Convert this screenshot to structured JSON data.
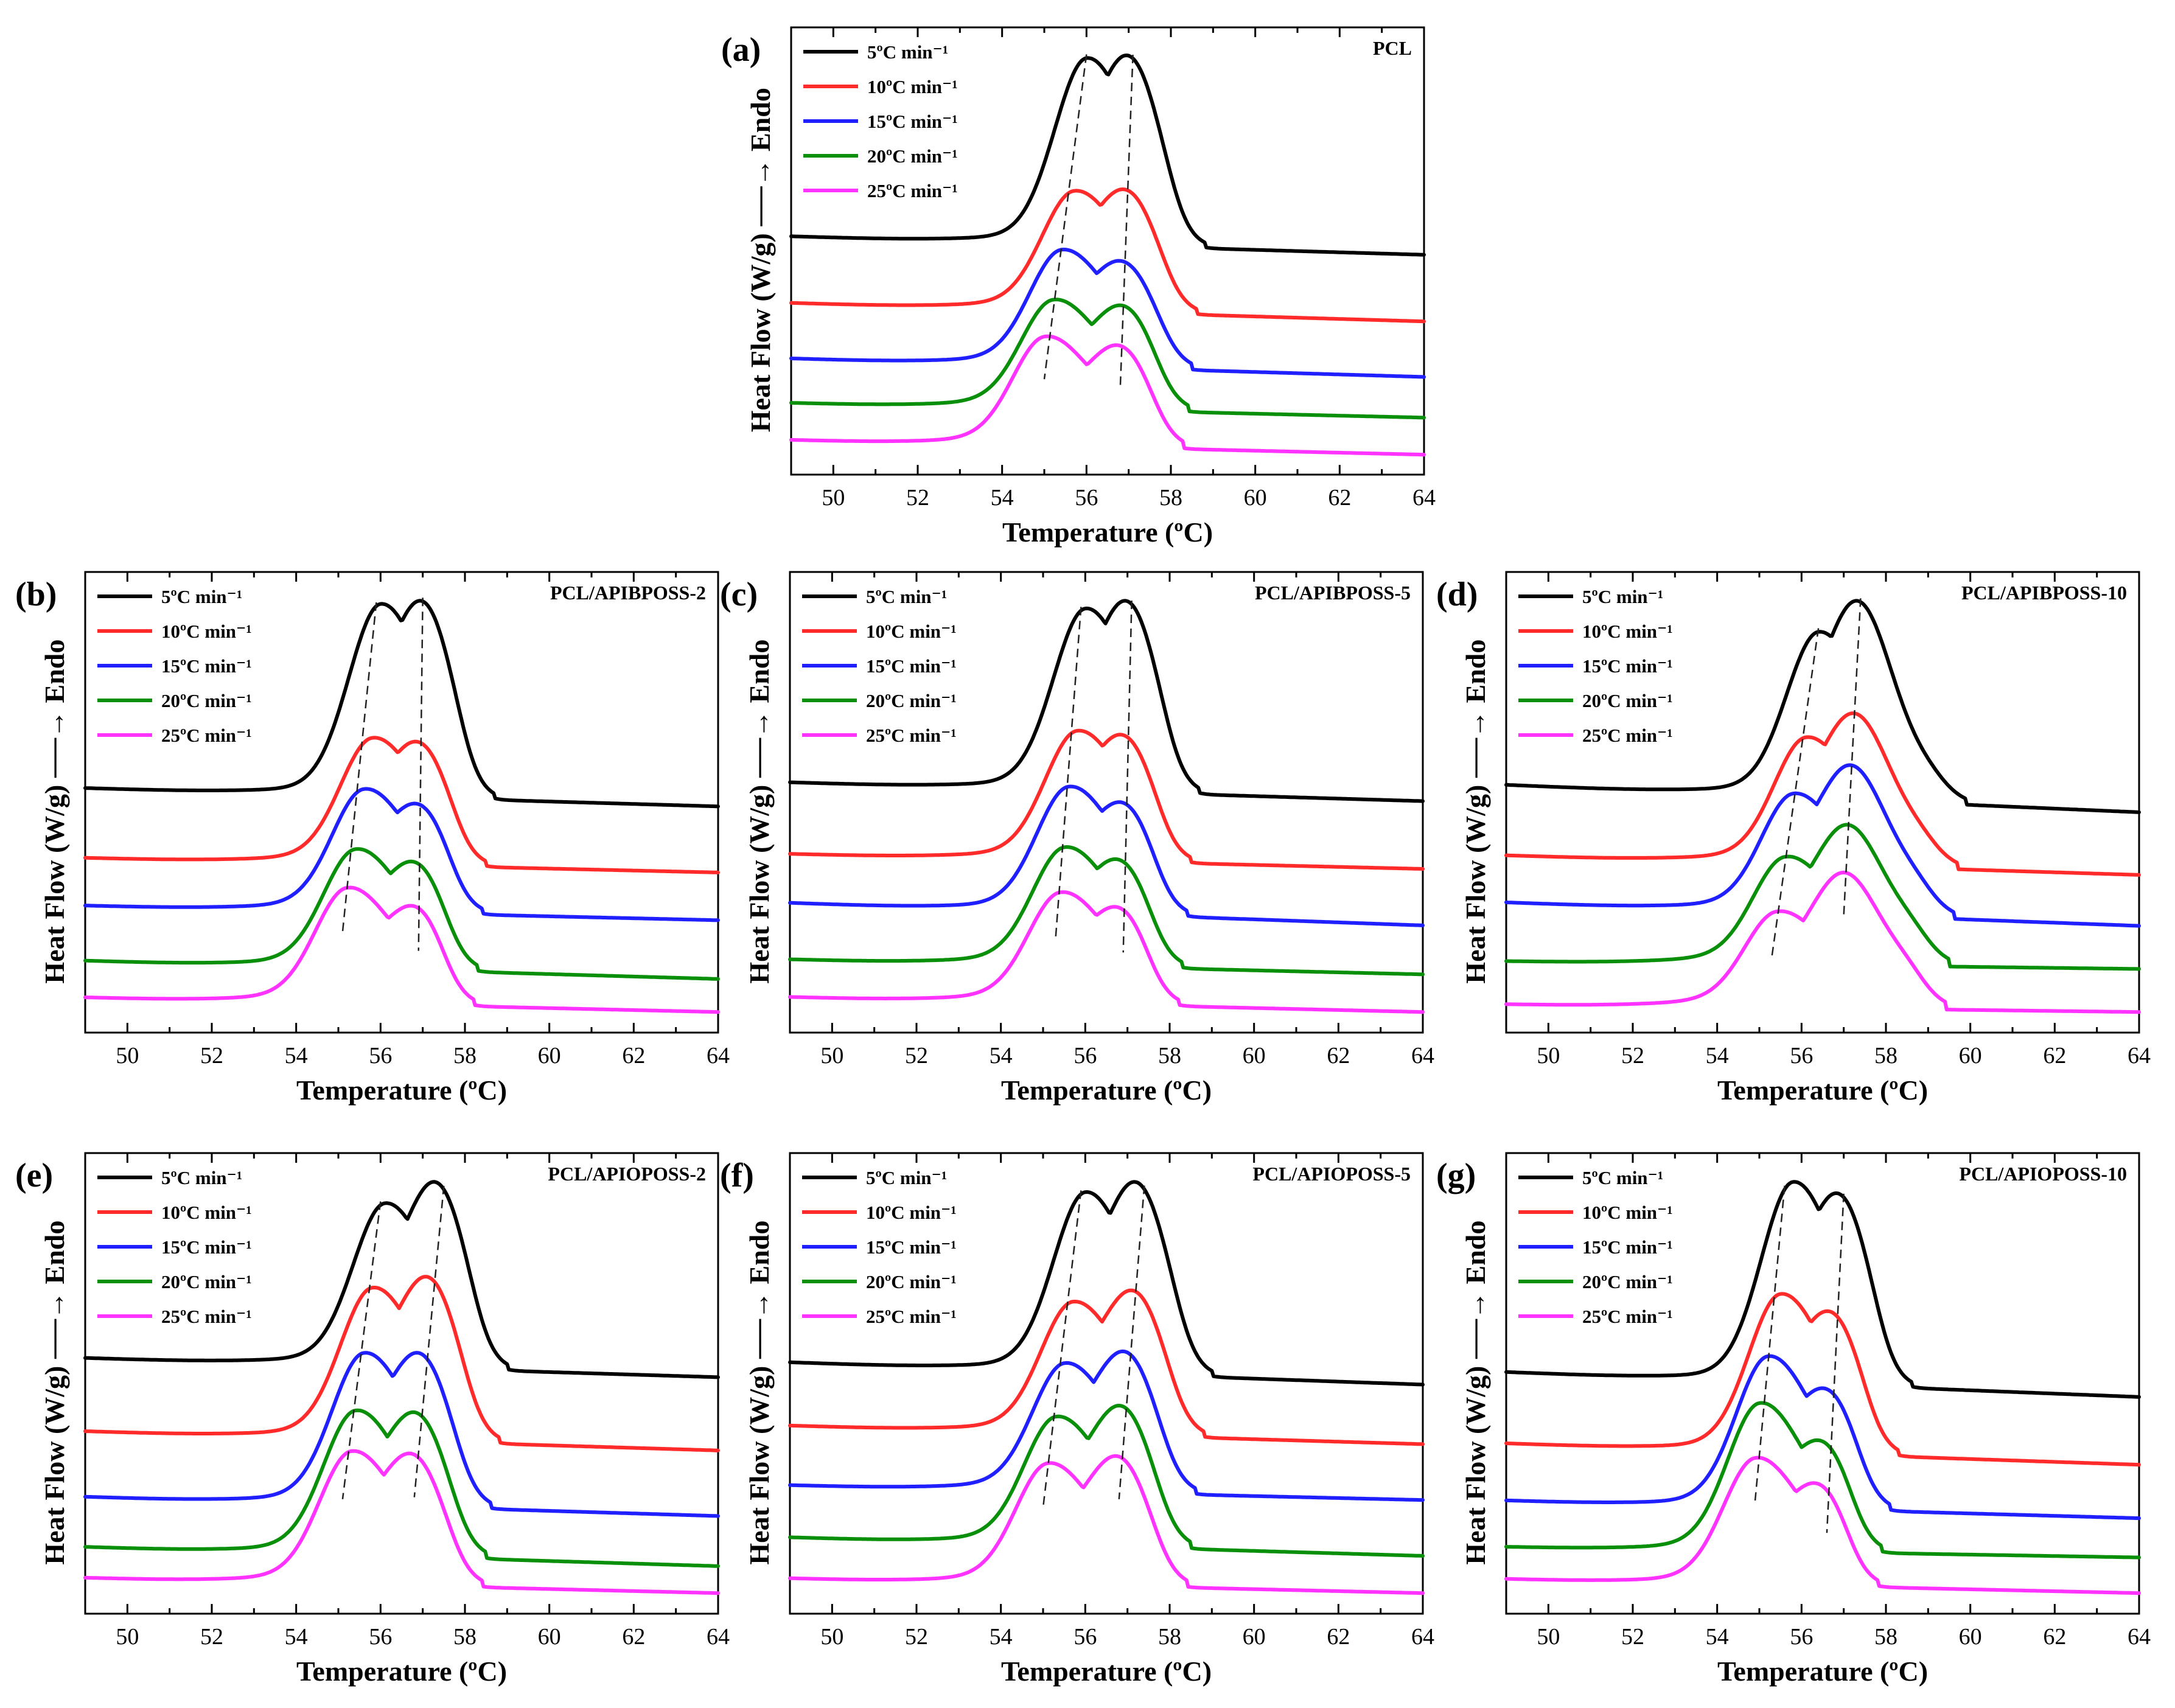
{
  "colors": {
    "5": "#000000",
    "10": "#ff2a2a",
    "15": "#1f1fff",
    "20": "#0a8f0a",
    "25": "#ff33ff",
    "dashed": "#333333"
  },
  "chart_data": [
    {
      "type": "line",
      "panel_label": "(a)",
      "sample": "PCL",
      "title": "PCL",
      "xlabel": "Temperature (ºC)",
      "ylabel": "Heat Flow (W/g) ──→ Endo",
      "xlim": [
        49,
        64
      ],
      "xticks": [
        50,
        52,
        54,
        56,
        58,
        60,
        62,
        64
      ],
      "y_units": "arbitrary (normalized, vertically offset)",
      "legend": [
        "5ºC min⁻¹",
        "10ºC min⁻¹",
        "15ºC min⁻¹",
        "20ºC min⁻¹",
        "25ºC min⁻¹"
      ],
      "series": [
        {
          "name": "5ºC min-1",
          "color_key": "5",
          "baseline_left": 55,
          "baseline_right": 50,
          "peak1_T": 56.0,
          "peak1_h": 46,
          "peak2_T": 57.1,
          "peak2_h": 36,
          "end_T": 58.8
        },
        {
          "name": "10ºC min-1",
          "color_key": "10",
          "baseline_left": 37,
          "baseline_right": 32,
          "peak1_T": 55.7,
          "peak1_h": 28,
          "peak2_T": 57.0,
          "peak2_h": 22,
          "end_T": 58.6
        },
        {
          "name": "15ºC min-1",
          "color_key": "15",
          "baseline_left": 22,
          "baseline_right": 17,
          "peak1_T": 55.4,
          "peak1_h": 27,
          "peak2_T": 56.9,
          "peak2_h": 18,
          "end_T": 58.5
        },
        {
          "name": "20ºC min-1",
          "color_key": "20",
          "baseline_left": 10,
          "baseline_right": 6,
          "peak1_T": 55.2,
          "peak1_h": 25,
          "peak2_T": 56.9,
          "peak2_h": 18,
          "end_T": 58.4
        },
        {
          "name": "25ºC min-1",
          "color_key": "25",
          "baseline_left": 0,
          "baseline_right": -4,
          "peak1_T": 55.0,
          "peak1_h": 25,
          "peak2_T": 56.8,
          "peak2_h": 17,
          "end_T": 58.3
        }
      ],
      "peak_trend_lines": [
        [
          56.0,
          55.0
        ],
        [
          57.1,
          56.8
        ]
      ]
    },
    {
      "type": "line",
      "panel_label": "(b)",
      "sample": "PCL/APIBPOSS-2",
      "title": "PCL/APIBPOSS-2",
      "xlabel": "Temperature (ºC)",
      "ylabel": "Heat Flow (W/g) ──→ Endo",
      "xlim": [
        49,
        64
      ],
      "xticks": [
        50,
        52,
        54,
        56,
        58,
        60,
        62,
        64
      ],
      "y_units": "arbitrary (normalized, vertically offset)",
      "legend": [
        "5ºC min⁻¹",
        "10ºC min⁻¹",
        "15ºC min⁻¹",
        "20ºC min⁻¹",
        "25ºC min⁻¹"
      ],
      "series": [
        {
          "name": "5ºC min-1",
          "color_key": "5",
          "baseline_left": 57,
          "baseline_right": 52,
          "peak1_T": 56.0,
          "peak1_h": 48,
          "peak2_T": 57.1,
          "peak2_h": 38,
          "end_T": 58.7
        },
        {
          "name": "10ºC min-1",
          "color_key": "10",
          "baseline_left": 38,
          "baseline_right": 34,
          "peak1_T": 55.8,
          "peak1_h": 30,
          "peak2_T": 57.0,
          "peak2_h": 22,
          "end_T": 58.5
        },
        {
          "name": "15ºC min-1",
          "color_key": "15",
          "baseline_left": 25,
          "baseline_right": 21,
          "peak1_T": 55.6,
          "peak1_h": 29,
          "peak2_T": 57.0,
          "peak2_h": 19,
          "end_T": 58.4
        },
        {
          "name": "20ºC min-1",
          "color_key": "20",
          "baseline_left": 10,
          "baseline_right": 5,
          "peak1_T": 55.4,
          "peak1_h": 28,
          "peak2_T": 56.9,
          "peak2_h": 19,
          "end_T": 58.3
        },
        {
          "name": "25ºC min-1",
          "color_key": "25",
          "baseline_left": 0,
          "baseline_right": -4,
          "peak1_T": 55.2,
          "peak1_h": 27,
          "peak2_T": 56.9,
          "peak2_h": 17,
          "end_T": 58.2
        }
      ],
      "peak_trend_lines": [
        [
          55.9,
          55.1
        ],
        [
          57.0,
          56.9
        ]
      ]
    },
    {
      "type": "line",
      "panel_label": "(c)",
      "sample": "PCL/APIBPOSS-5",
      "title": "PCL/APIBPOSS-5",
      "xlabel": "Temperature (ºC)",
      "ylabel": "Heat Flow (W/g) ──→ Endo",
      "xlim": [
        49,
        64
      ],
      "xticks": [
        50,
        52,
        54,
        56,
        58,
        60,
        62,
        64
      ],
      "y_units": "arbitrary (normalized, vertically offset)",
      "legend": [
        "5ºC min⁻¹",
        "10ºC min⁻¹",
        "15ºC min⁻¹",
        "20ºC min⁻¹",
        "25ºC min⁻¹"
      ],
      "series": [
        {
          "name": "5ºC min-1",
          "color_key": "5",
          "baseline_left": 57,
          "baseline_right": 52,
          "peak1_T": 56.0,
          "peak1_h": 44,
          "peak2_T": 57.1,
          "peak2_h": 36,
          "end_T": 58.7
        },
        {
          "name": "10ºC min-1",
          "color_key": "10",
          "baseline_left": 38,
          "baseline_right": 34,
          "peak1_T": 55.8,
          "peak1_h": 30,
          "peak2_T": 57.0,
          "peak2_h": 22,
          "end_T": 58.5
        },
        {
          "name": "15ºC min-1",
          "color_key": "15",
          "baseline_left": 25,
          "baseline_right": 19,
          "peak1_T": 55.6,
          "peak1_h": 29,
          "peak2_T": 57.0,
          "peak2_h": 19,
          "end_T": 58.4
        },
        {
          "name": "20ºC min-1",
          "color_key": "20",
          "baseline_left": 10,
          "baseline_right": 6,
          "peak1_T": 55.5,
          "peak1_h": 27,
          "peak2_T": 56.9,
          "peak2_h": 18,
          "end_T": 58.3
        },
        {
          "name": "25ºC min-1",
          "color_key": "25",
          "baseline_left": 0,
          "baseline_right": -4,
          "peak1_T": 55.4,
          "peak1_h": 25,
          "peak2_T": 56.9,
          "peak2_h": 16,
          "end_T": 58.2
        }
      ],
      "peak_trend_lines": [
        [
          55.9,
          55.3
        ],
        [
          57.1,
          56.9
        ]
      ]
    },
    {
      "type": "line",
      "panel_label": "(d)",
      "sample": "PCL/APIBPOSS-10",
      "title": "PCL/APIBPOSS-10",
      "xlabel": "Temperature (ºC)",
      "ylabel": "Heat Flow (W/g) ──→ Endo",
      "xlim": [
        49,
        64
      ],
      "xticks": [
        50,
        52,
        54,
        56,
        58,
        60,
        62,
        64
      ],
      "y_units": "arbitrary (normalized, vertically offset)",
      "legend": [
        "5ºC min⁻¹",
        "10ºC min⁻¹",
        "15ºC min⁻¹",
        "20ºC min⁻¹",
        "25ºC min⁻¹"
      ],
      "series": [
        {
          "name": "5ºC min-1",
          "color_key": "5",
          "baseline_left": 58,
          "baseline_right": 51,
          "peak1_T": 56.4,
          "peak1_h": 38,
          "peak2_T": 57.4,
          "peak2_h": 36,
          "end_T": 59.9
        },
        {
          "name": "10ºC min-1",
          "color_key": "10",
          "baseline_left": 40,
          "baseline_right": 35,
          "peak1_T": 56.1,
          "peak1_h": 28,
          "peak2_T": 57.3,
          "peak2_h": 27,
          "end_T": 59.7
        },
        {
          "name": "15ºC min-1",
          "color_key": "15",
          "baseline_left": 28,
          "baseline_right": 22,
          "peak1_T": 55.8,
          "peak1_h": 26,
          "peak2_T": 57.2,
          "peak2_h": 27,
          "end_T": 59.6
        },
        {
          "name": "20ºC min-1",
          "color_key": "20",
          "baseline_left": 13,
          "baseline_right": 11,
          "peak1_T": 55.6,
          "peak1_h": 23,
          "peak2_T": 57.1,
          "peak2_h": 25,
          "end_T": 59.5
        },
        {
          "name": "25ºC min-1",
          "color_key": "25",
          "baseline_left": 2,
          "baseline_right": 0,
          "peak1_T": 55.4,
          "peak1_h": 20,
          "peak2_T": 57.0,
          "peak2_h": 24,
          "end_T": 59.4
        }
      ],
      "peak_trend_lines": [
        [
          56.4,
          55.3
        ],
        [
          57.4,
          57.0
        ]
      ]
    },
    {
      "type": "line",
      "panel_label": "(e)",
      "sample": "PCL/APIOPOSS-2",
      "title": "PCL/APIOPOSS-2",
      "xlabel": "Temperature (ºC)",
      "ylabel": "Heat Flow (W/g) ──→ Endo",
      "xlim": [
        49,
        64
      ],
      "xticks": [
        50,
        52,
        54,
        56,
        58,
        60,
        62,
        64
      ],
      "y_units": "arbitrary (normalized, vertically offset)",
      "legend": [
        "5ºC min⁻¹",
        "10ºC min⁻¹",
        "15ºC min⁻¹",
        "20ºC min⁻¹",
        "25ºC min⁻¹"
      ],
      "series": [
        {
          "name": "5ºC min-1",
          "color_key": "5",
          "baseline_left": 57,
          "baseline_right": 52,
          "peak1_T": 56.1,
          "peak1_h": 38,
          "peak2_T": 57.4,
          "peak2_h": 36,
          "end_T": 59.0
        },
        {
          "name": "10ºC min-1",
          "color_key": "10",
          "baseline_left": 38,
          "baseline_right": 33,
          "peak1_T": 55.8,
          "peak1_h": 35,
          "peak2_T": 57.2,
          "peak2_h": 31,
          "end_T": 58.8
        },
        {
          "name": "15ºC min-1",
          "color_key": "15",
          "baseline_left": 21,
          "baseline_right": 16,
          "peak1_T": 55.6,
          "peak1_h": 35,
          "peak2_T": 57.0,
          "peak2_h": 28,
          "end_T": 58.6
        },
        {
          "name": "20ºC min-1",
          "color_key": "20",
          "baseline_left": 8,
          "baseline_right": 3,
          "peak1_T": 55.4,
          "peak1_h": 33,
          "peak2_T": 56.9,
          "peak2_h": 26,
          "end_T": 58.5
        },
        {
          "name": "25ºC min-1",
          "color_key": "25",
          "baseline_left": 0,
          "baseline_right": -4,
          "peak1_T": 55.3,
          "peak1_h": 30,
          "peak2_T": 56.8,
          "peak2_h": 23,
          "end_T": 58.4
        }
      ],
      "peak_trend_lines": [
        [
          56.0,
          55.1
        ],
        [
          57.5,
          56.8
        ]
      ]
    },
    {
      "type": "line",
      "panel_label": "(f)",
      "sample": "PCL/APIOPOSS-5",
      "title": "PCL/APIOPOSS-5",
      "xlabel": "Temperature (ºC)",
      "ylabel": "Heat Flow (W/g) ──→ Endo",
      "xlim": [
        49,
        64
      ],
      "xticks": [
        50,
        52,
        54,
        56,
        58,
        60,
        62,
        64
      ],
      "y_units": "arbitrary (normalized, vertically offset)",
      "legend": [
        "5ºC min⁻¹",
        "10ºC min⁻¹",
        "15ºC min⁻¹",
        "20ºC min⁻¹",
        "25ºC min⁻¹"
      ],
      "series": [
        {
          "name": "5ºC min-1",
          "color_key": "5",
          "baseline_left": 58,
          "baseline_right": 52,
          "peak1_T": 56.0,
          "peak1_h": 44,
          "peak2_T": 57.3,
          "peak2_h": 38,
          "end_T": 59.0
        },
        {
          "name": "10ºC min-1",
          "color_key": "10",
          "baseline_left": 41,
          "baseline_right": 36,
          "peak1_T": 55.7,
          "peak1_h": 31,
          "peak2_T": 57.2,
          "peak2_h": 28,
          "end_T": 58.8
        },
        {
          "name": "15ºC min-1",
          "color_key": "15",
          "baseline_left": 25,
          "baseline_right": 21,
          "peak1_T": 55.5,
          "peak1_h": 30,
          "peak2_T": 57.0,
          "peak2_h": 27,
          "end_T": 58.6
        },
        {
          "name": "20ºC min-1",
          "color_key": "20",
          "baseline_left": 11,
          "baseline_right": 6,
          "peak1_T": 55.3,
          "peak1_h": 30,
          "peak2_T": 56.9,
          "peak2_h": 27,
          "end_T": 58.5
        },
        {
          "name": "25ºC min-1",
          "color_key": "25",
          "baseline_left": 0,
          "baseline_right": -4,
          "peak1_T": 55.1,
          "peak1_h": 28,
          "peak2_T": 56.8,
          "peak2_h": 24,
          "end_T": 58.4
        }
      ],
      "peak_trend_lines": [
        [
          55.9,
          55.0
        ],
        [
          57.4,
          56.8
        ]
      ]
    },
    {
      "type": "line",
      "panel_label": "(g)",
      "sample": "PCL/APIOPOSS-10",
      "title": "PCL/APIOPOSS-10",
      "xlabel": "Temperature (ºC)",
      "ylabel": "Heat Flow (W/g) ──→ Endo",
      "xlim": [
        49,
        64
      ],
      "xticks": [
        50,
        52,
        54,
        56,
        58,
        60,
        62,
        64
      ],
      "y_units": "arbitrary (normalized, vertically offset)",
      "legend": [
        "5ºC min⁻¹",
        "10ºC min⁻¹",
        "15ºC min⁻¹",
        "20ºC min⁻¹",
        "25ºC min⁻¹"
      ],
      "series": [
        {
          "name": "5ºC min-1",
          "color_key": "5",
          "baseline_left": 58,
          "baseline_right": 51,
          "peak1_T": 55.8,
          "peak1_h": 52,
          "peak2_T": 57.0,
          "peak2_h": 38,
          "end_T": 58.6
        },
        {
          "name": "10ºC min-1",
          "color_key": "10",
          "baseline_left": 38,
          "baseline_right": 32,
          "peak1_T": 55.5,
          "peak1_h": 40,
          "peak2_T": 56.8,
          "peak2_h": 27,
          "end_T": 58.3
        },
        {
          "name": "15ºC min-1",
          "color_key": "15",
          "baseline_left": 22,
          "baseline_right": 17,
          "peak1_T": 55.2,
          "peak1_h": 38,
          "peak2_T": 56.7,
          "peak2_h": 22,
          "end_T": 58.1
        },
        {
          "name": "20ºC min-1",
          "color_key": "20",
          "baseline_left": 9,
          "baseline_right": 6,
          "peak1_T": 55.0,
          "peak1_h": 37,
          "peak2_T": 56.6,
          "peak2_h": 20,
          "end_T": 57.9
        },
        {
          "name": "25ºC min-1",
          "color_key": "25",
          "baseline_left": 0,
          "baseline_right": -4,
          "peak1_T": 54.9,
          "peak1_h": 31,
          "peak2_T": 56.5,
          "peak2_h": 18,
          "end_T": 57.8
        }
      ],
      "peak_trend_lines": [
        [
          55.6,
          54.9
        ],
        [
          57.0,
          56.6
        ]
      ]
    }
  ]
}
